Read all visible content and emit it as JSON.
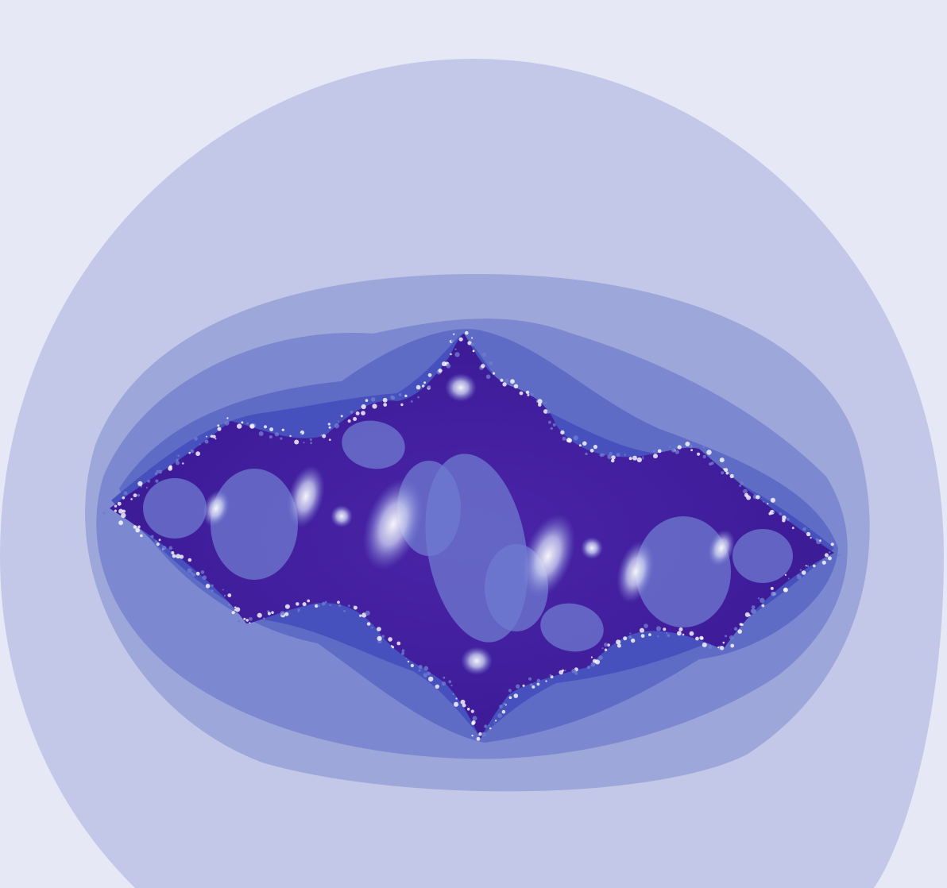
{
  "image": {
    "subject": "julia-set-fractal",
    "palette": {
      "background": "#e6e9f5",
      "band_1": "#c4c8e8",
      "band_2": "#9ea7da",
      "band_3": "#7c88cf",
      "band_4": "#5f6cc6",
      "band_5": "#4651bd",
      "core": "#4a25a8",
      "core_dark": "#3b1a95",
      "inner_light": "#6f7bd0",
      "highlight": "#ffffff"
    }
  }
}
